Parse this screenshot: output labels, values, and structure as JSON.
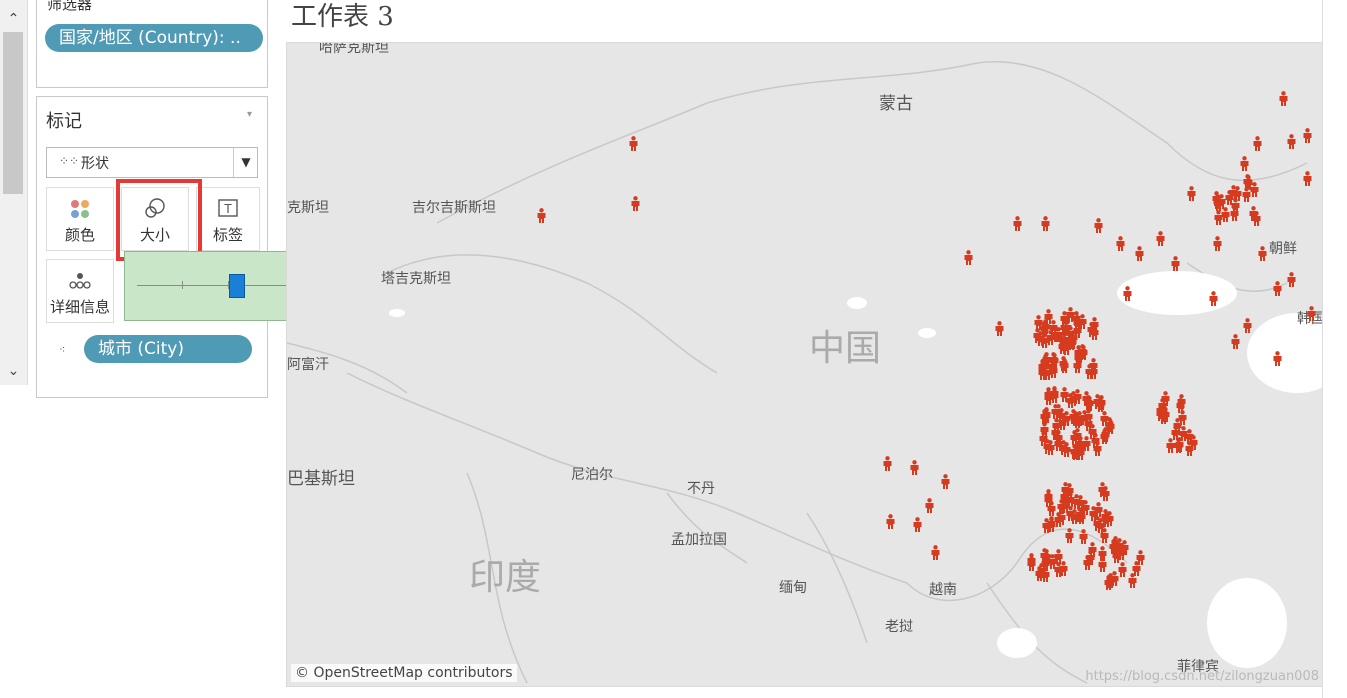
{
  "filters": {
    "title": "筛选器",
    "pill": "国家/地区 (Country): .."
  },
  "marks": {
    "title": "标记",
    "mark_type": "形状",
    "buttons": {
      "color": "颜色",
      "size": "大小",
      "label": "标签",
      "detail": "详细信息"
    },
    "size_slider_value": 0.55,
    "pill": "城市 (City)"
  },
  "sheet": {
    "title": "工作表 3"
  },
  "map": {
    "attribution": "© OpenStreetMap contributors",
    "watermark": "https://blog.csdn.net/zilongzuan008",
    "labels": [
      "哈萨克斯坦",
      "蒙古",
      "吉尔吉斯斯坦",
      "塔吉克斯坦",
      "克斯坦",
      "阿富汗",
      "中国",
      "巴基斯坦",
      "尼泊尔",
      "不丹",
      "孟加拉国",
      "印度",
      "缅甸",
      "越南",
      "老挝",
      "朝鲜",
      "韩国",
      "菲律宾"
    ],
    "marker_color": "#d63a1f",
    "background": "#e6e6e6"
  },
  "icons": [
    "chevron-up-icon",
    "chevron-down-icon",
    "color-dots-icon",
    "size-circles-icon",
    "text-label-icon",
    "detail-dots-icon",
    "shape-icon",
    "dropdown-arrow-icon",
    "person-marker-icon"
  ]
}
